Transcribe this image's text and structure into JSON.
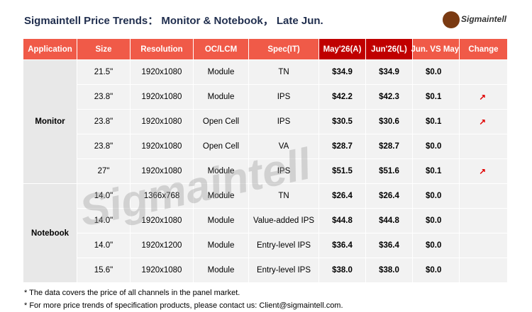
{
  "header": {
    "title": "Sigmaintell Price Trends： Monitor & Notebook， Late Jun.",
    "logo": "Sigmaintell"
  },
  "watermark": "Sigmaintell",
  "table": {
    "columns": [
      "Application",
      "Size",
      "Resolution",
      "OC/LCM",
      "Spec(IT)",
      "May'26(A)",
      "Jun'26(L)",
      "Jun. VS May.",
      "Change"
    ],
    "groups": [
      {
        "application": "Monitor",
        "rows": [
          [
            "21.5\"",
            "1920x1080",
            "Module",
            "TN",
            "$34.9",
            "$34.9",
            "$0.0",
            null
          ],
          [
            "23.8\"",
            "1920x1080",
            "Module",
            "IPS",
            "$42.2",
            "$42.3",
            "$0.1",
            "↗"
          ],
          [
            "23.8\"",
            "1920x1080",
            "Open Cell",
            "IPS",
            "$30.5",
            "$30.6",
            "$0.1",
            "↗"
          ],
          [
            "23.8\"",
            "1920x1080",
            "Open Cell",
            "VA",
            "$28.7",
            "$28.7",
            "$0.0",
            null
          ],
          [
            "27\"",
            "1920x1080",
            "Module",
            "IPS",
            "$51.5",
            "$51.6",
            "$0.1",
            "↗"
          ]
        ]
      },
      {
        "application": "Notebook",
        "rows": [
          [
            "14.0\"",
            "1366x768",
            "Module",
            "TN",
            "$26.4",
            "$26.4",
            "$0.0",
            null
          ],
          [
            "14.0\"",
            "1920x1080",
            "Module",
            "Value-added IPS",
            "$44.8",
            "$44.8",
            "$0.0",
            null
          ],
          [
            "14.0\"",
            "1920x1200",
            "Module",
            "Entry-level IPS",
            "$36.4",
            "$36.4",
            "$0.0",
            null
          ],
          [
            "15.6\"",
            "1920x1080",
            "Module",
            "Entry-level IPS",
            "$38.0",
            "$38.0",
            "$0.0",
            null
          ]
        ]
      }
    ]
  },
  "footnotes": [
    "* The data covers the price of all channels in the panel market.",
    "* For more price trends of specification products, please contact us: Client@sigmaintell.com."
  ]
}
